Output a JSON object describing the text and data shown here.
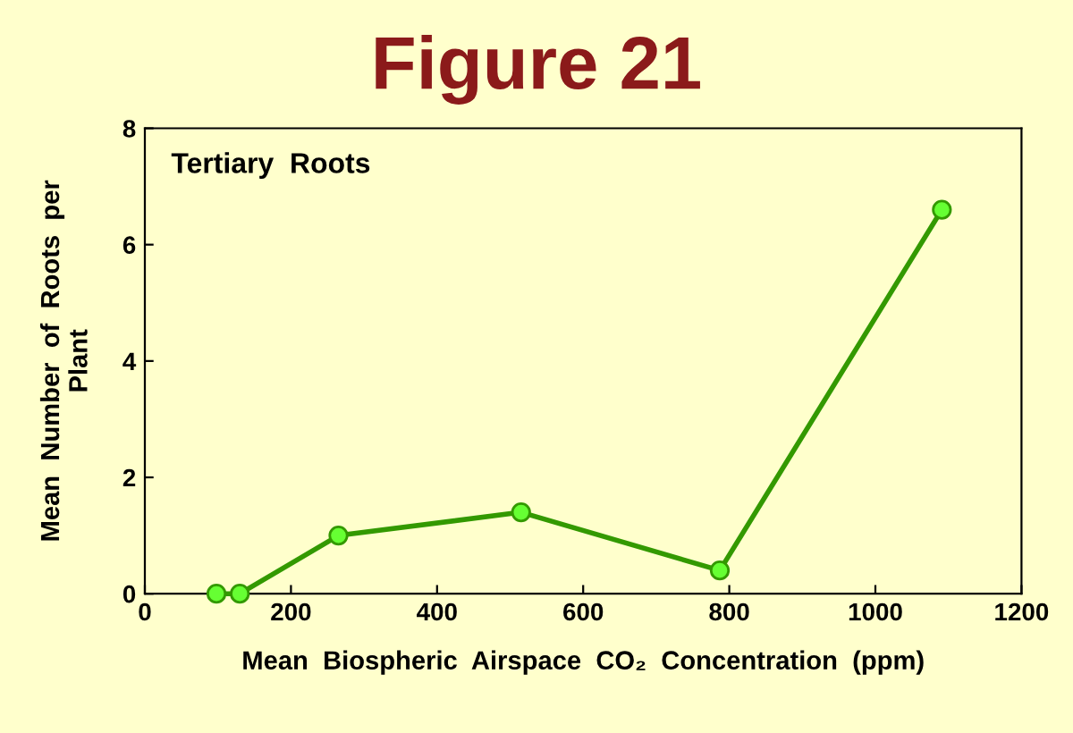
{
  "chart_data": {
    "type": "line",
    "title": "Figure 21",
    "xlabel": "Mean  Biospheric  Airspace  CO₂  Concentration  (ppm)",
    "ylabel": "Mean  Number  of  Roots  per\nPlant",
    "annotations": [
      "Tertiary  Roots"
    ],
    "x": [
      98,
      130,
      265,
      515,
      787,
      1091
    ],
    "series": [
      {
        "color": "#339900",
        "values": [
          0,
          0,
          1.0,
          1.4,
          0.4,
          6.6
        ]
      }
    ],
    "marker": "circle",
    "line_style": "solid",
    "grid": false,
    "legend": false,
    "xlim": [
      0,
      1200
    ],
    "xticks": [
      0,
      200,
      400,
      600,
      800,
      1000,
      1200
    ],
    "ylim": [
      0,
      8
    ],
    "yticks": [
      0,
      2,
      4,
      6,
      8
    ]
  }
}
